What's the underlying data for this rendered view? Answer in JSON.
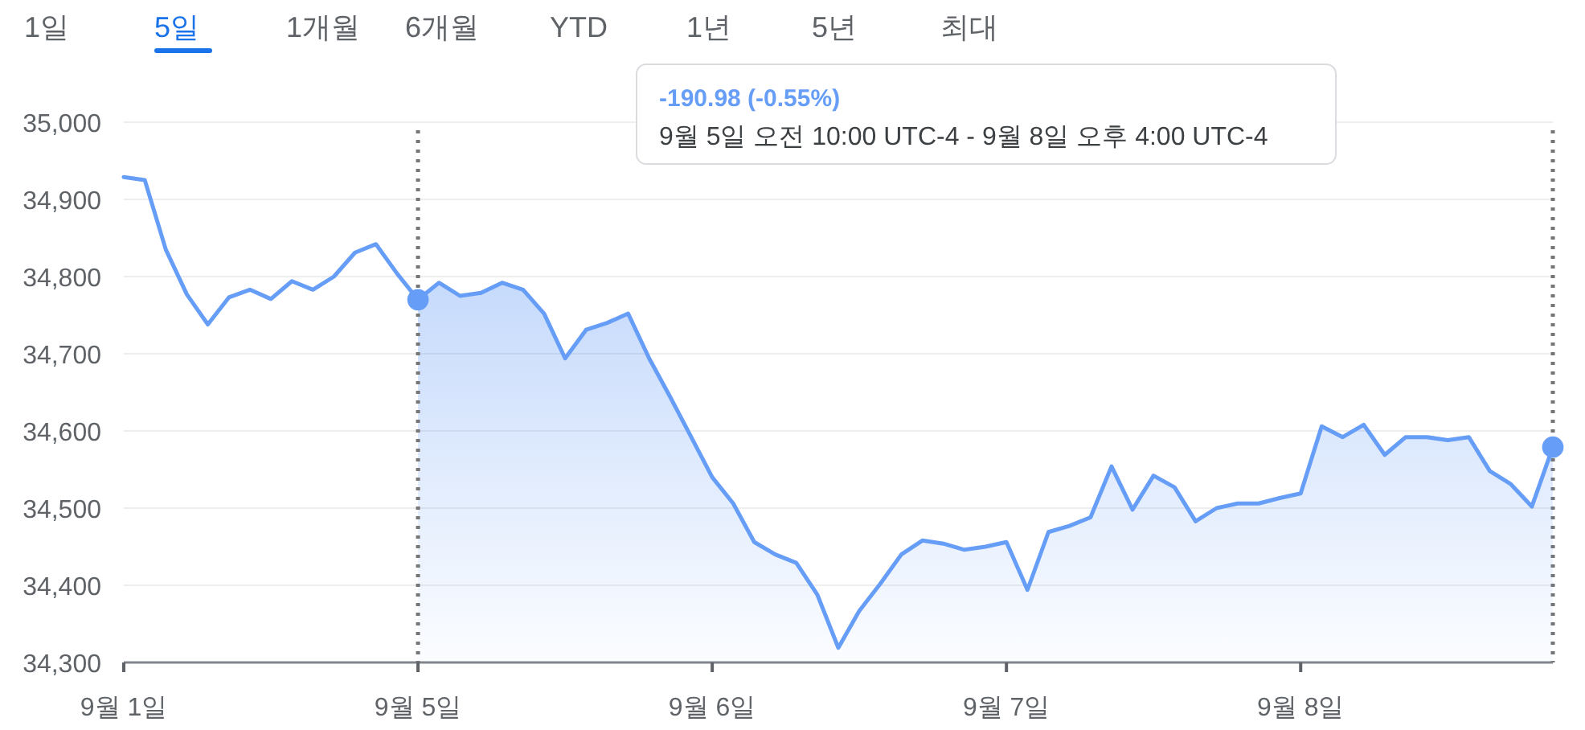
{
  "chart_data": [
    {
      "type": "other",
      "annotations": [
        "1일",
        "5일",
        "1개월",
        "6개월",
        "YTD",
        "1년",
        "5년",
        "최대"
      ]
    },
    {
      "type": "line",
      "ylim": [
        34300,
        35000
      ],
      "categories": [
        "9월 1일",
        null,
        null,
        null,
        null,
        null,
        null,
        null,
        null,
        null,
        null,
        null,
        null,
        null,
        "9월 5일",
        null,
        null,
        null,
        null,
        null,
        null,
        null,
        null,
        null,
        null,
        null,
        null,
        null,
        "9월 6일",
        null,
        null,
        null,
        null,
        null,
        null,
        null,
        null,
        null,
        null,
        null,
        null,
        null,
        "9월 7일",
        null,
        null,
        null,
        null,
        null,
        null,
        null,
        null,
        null,
        null,
        null,
        null,
        null,
        "9월 8일",
        null,
        null,
        null,
        null,
        null,
        null,
        null,
        null,
        null,
        null,
        null,
        null
      ],
      "yticks": [
        {
          "value": 34300,
          "label": "34,300"
        },
        {
          "value": 34400,
          "label": "34,400"
        },
        {
          "value": 34500,
          "label": "34,500"
        },
        {
          "value": 34600,
          "label": "34,600"
        },
        {
          "value": 34700,
          "label": "34,700"
        },
        {
          "value": 34800,
          "label": "34,800"
        },
        {
          "value": 34900,
          "label": "34,900"
        },
        {
          "value": 35000,
          "label": "35,000"
        }
      ],
      "grid": "y",
      "marker": "none",
      "line_style": "solid",
      "series": [
        {
          "type": "line",
          "color": "#669df6",
          "values": [
            34929,
            34925,
            34835,
            34777,
            34738,
            34773,
            34783,
            34771,
            34794,
            34783,
            34800,
            34831,
            34842,
            34804,
            34770,
            34792,
            34775,
            34779,
            34792,
            34783,
            34752,
            34694,
            34731,
            34740,
            34752,
            34694,
            34644,
            34592,
            34540,
            34506,
            34456,
            34440,
            34429,
            34388,
            34319,
            34367,
            34402,
            34440,
            34458,
            34454,
            34446,
            34450,
            34456,
            34394,
            34469,
            34477,
            34488,
            34554,
            34498,
            34542,
            34527,
            34483,
            34500,
            34506,
            34506,
            34513,
            34519,
            34606,
            34592,
            34608,
            34569,
            34592,
            34592,
            34588,
            34592,
            34548,
            34531,
            34502,
            34579
          ]
        },
        {
          "type": "area",
          "color": "#4285f4",
          "values": [
            null,
            null,
            null,
            null,
            null,
            null,
            null,
            null,
            null,
            null,
            null,
            null,
            null,
            null,
            34770,
            34792,
            34775,
            34779,
            34792,
            34783,
            34752,
            34694,
            34731,
            34740,
            34752,
            34694,
            34644,
            34592,
            34540,
            34506,
            34456,
            34440,
            34429,
            34388,
            34319,
            34367,
            34402,
            34440,
            34458,
            34454,
            34446,
            34450,
            34456,
            34394,
            34469,
            34477,
            34488,
            34554,
            34498,
            34542,
            34527,
            34483,
            34500,
            34506,
            34506,
            34513,
            34519,
            34606,
            34592,
            34608,
            34569,
            34592,
            34592,
            34588,
            34592,
            34548,
            34531,
            34502,
            34579
          ]
        },
        {
          "type": "scatter",
          "color": "#669df6",
          "marker": "circle",
          "values": [
            null,
            null,
            null,
            null,
            null,
            null,
            null,
            null,
            null,
            null,
            null,
            null,
            null,
            null,
            34770,
            null,
            null,
            null,
            null,
            null,
            null,
            null,
            null,
            null,
            null,
            null,
            null,
            null,
            null,
            null,
            null,
            null,
            null,
            null,
            null,
            null,
            null,
            null,
            null,
            null,
            null,
            null,
            null,
            null,
            null,
            null,
            null,
            null,
            null,
            null,
            null,
            null,
            null,
            null,
            null,
            null,
            null,
            null,
            null,
            null,
            null,
            null,
            null,
            null,
            null,
            null,
            null,
            null,
            34579
          ]
        }
      ],
      "ref_lines": [
        {
          "axis": "x",
          "value": "9월 5일",
          "color": "#757575",
          "line_style": "dotted"
        }
      ],
      "annotations": [
        "-190.98 (-0.55%)",
        "9월 5일 오전 10:00 UTC-4 - 9월 8일 오후 4:00 UTC-4"
      ]
    }
  ]
}
